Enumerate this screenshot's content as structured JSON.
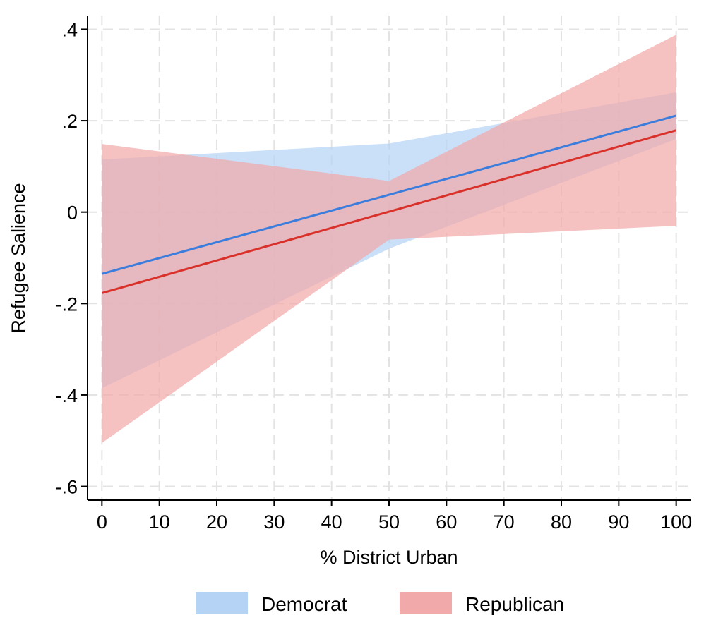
{
  "chart_data": {
    "type": "line",
    "xlabel": "% District Urban",
    "ylabel": "Refugee Salience",
    "xlim": [
      -2.5,
      102.5
    ],
    "ylim": [
      -0.63,
      0.43
    ],
    "x_ticks": [
      0,
      10,
      20,
      30,
      40,
      50,
      60,
      70,
      80,
      90,
      100
    ],
    "x_tick_labels": [
      "0",
      "10",
      "20",
      "30",
      "40",
      "50",
      "60",
      "70",
      "80",
      "90",
      "100"
    ],
    "y_ticks": [
      0.4,
      0.2,
      0,
      -0.2,
      -0.4,
      -0.6
    ],
    "y_tick_labels": [
      ".4",
      ".2",
      "0",
      "-.2",
      "-.4",
      "-.6"
    ],
    "grid": true,
    "legend_position": "bottom",
    "series": [
      {
        "name": "Democrat",
        "line_color": "#3b7ddd",
        "band_color": "#b5d3f5",
        "x": [
          0,
          50,
          100
        ],
        "y": [
          -0.135,
          0.038,
          0.211
        ],
        "lower": [
          -0.385,
          -0.08,
          0.16
        ],
        "upper": [
          0.115,
          0.15,
          0.262
        ]
      },
      {
        "name": "Republican",
        "line_color": "#d9312a",
        "band_color": "#f1a9a9",
        "x": [
          0,
          50,
          100
        ],
        "y": [
          -0.177,
          0.001,
          0.179
        ],
        "lower": [
          -0.505,
          -0.06,
          -0.03
        ],
        "upper": [
          0.149,
          0.068,
          0.388
        ]
      }
    ]
  },
  "legend": {
    "items": [
      {
        "label": "Democrat"
      },
      {
        "label": "Republican"
      }
    ]
  }
}
